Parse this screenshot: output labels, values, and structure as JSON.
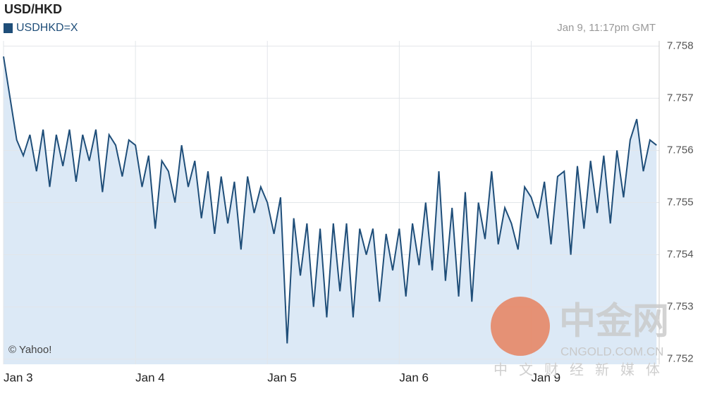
{
  "chart_data": {
    "type": "area",
    "title": "USD/HKD",
    "timestamp": "Jan 9, 11:17pm GMT",
    "credit": "© Yahoo!",
    "watermark": {
      "logo": "中金网",
      "site": "CNGOLD.COM.CN",
      "slogan": "中文财经新媒体"
    },
    "x": [
      0,
      0.05,
      0.1,
      0.15,
      0.2,
      0.25,
      0.3,
      0.35,
      0.4,
      0.45,
      0.5,
      0.55,
      0.6,
      0.65,
      0.7,
      0.75,
      0.8,
      0.85,
      0.9,
      0.95,
      1,
      1.05,
      1.1,
      1.15,
      1.2,
      1.25,
      1.3,
      1.35,
      1.4,
      1.45,
      1.5,
      1.55,
      1.6,
      1.65,
      1.7,
      1.75,
      1.8,
      1.85,
      1.9,
      1.95,
      2,
      2.05,
      2.1,
      2.15,
      2.2,
      2.25,
      2.3,
      2.35,
      2.4,
      2.45,
      2.5,
      2.55,
      2.6,
      2.65,
      2.7,
      2.75,
      2.8,
      2.85,
      2.9,
      2.95,
      3,
      3.05,
      3.1,
      3.15,
      3.2,
      3.25,
      3.3,
      3.35,
      3.4,
      3.45,
      3.5,
      3.55,
      3.6,
      3.65,
      3.7,
      3.75,
      3.8,
      3.85,
      3.9,
      3.95,
      4,
      4.05,
      4.1,
      4.15,
      4.2,
      4.25,
      4.3,
      4.35,
      4.4,
      4.45,
      4.5,
      4.55,
      4.6,
      4.65,
      4.7,
      4.75,
      4.8,
      4.85,
      4.9,
      4.95
    ],
    "series": [
      {
        "name": "USDHKD=X",
        "color": "#1f4e79",
        "fill": "#dce9f6",
        "values": [
          7.7578,
          7.757,
          7.7562,
          7.7559,
          7.7563,
          7.7556,
          7.7564,
          7.7553,
          7.7563,
          7.7557,
          7.7564,
          7.7554,
          7.7563,
          7.7558,
          7.7564,
          7.7552,
          7.7563,
          7.7561,
          7.7555,
          7.7562,
          7.7561,
          7.7553,
          7.7559,
          7.7545,
          7.7558,
          7.7556,
          7.755,
          7.7561,
          7.7553,
          7.7558,
          7.7547,
          7.7556,
          7.7544,
          7.7555,
          7.7546,
          7.7554,
          7.7541,
          7.7555,
          7.7548,
          7.7553,
          7.755,
          7.7544,
          7.7551,
          7.7523,
          7.7547,
          7.7536,
          7.7546,
          7.753,
          7.7545,
          7.7528,
          7.7546,
          7.7533,
          7.7546,
          7.7528,
          7.7545,
          7.754,
          7.7545,
          7.7531,
          7.7544,
          7.7537,
          7.7545,
          7.7532,
          7.7546,
          7.7538,
          7.755,
          7.7537,
          7.7556,
          7.7535,
          7.7549,
          7.7532,
          7.7552,
          7.7531,
          7.755,
          7.7543,
          7.7556,
          7.7542,
          7.7549,
          7.7546,
          7.7541,
          7.7553,
          7.7551,
          7.7547,
          7.7554,
          7.7542,
          7.7555,
          7.7556,
          7.754,
          7.7557,
          7.7545,
          7.7558,
          7.7548,
          7.7559,
          7.7546,
          7.756,
          7.7551,
          7.7562,
          7.7566,
          7.7556,
          7.7562,
          7.7561
        ]
      }
    ],
    "xlim": [
      0,
      4.97
    ],
    "xticks": [
      {
        "value": 0,
        "label": "Jan 3"
      },
      {
        "value": 1,
        "label": "Jan 4"
      },
      {
        "value": 2,
        "label": "Jan 5"
      },
      {
        "value": 3,
        "label": "Jan 6"
      },
      {
        "value": 4,
        "label": "Jan 9"
      }
    ],
    "ylim": [
      7.7519,
      7.7581
    ],
    "yticks": [
      7.752,
      7.753,
      7.754,
      7.755,
      7.756,
      7.757,
      7.758
    ],
    "grid": true
  }
}
